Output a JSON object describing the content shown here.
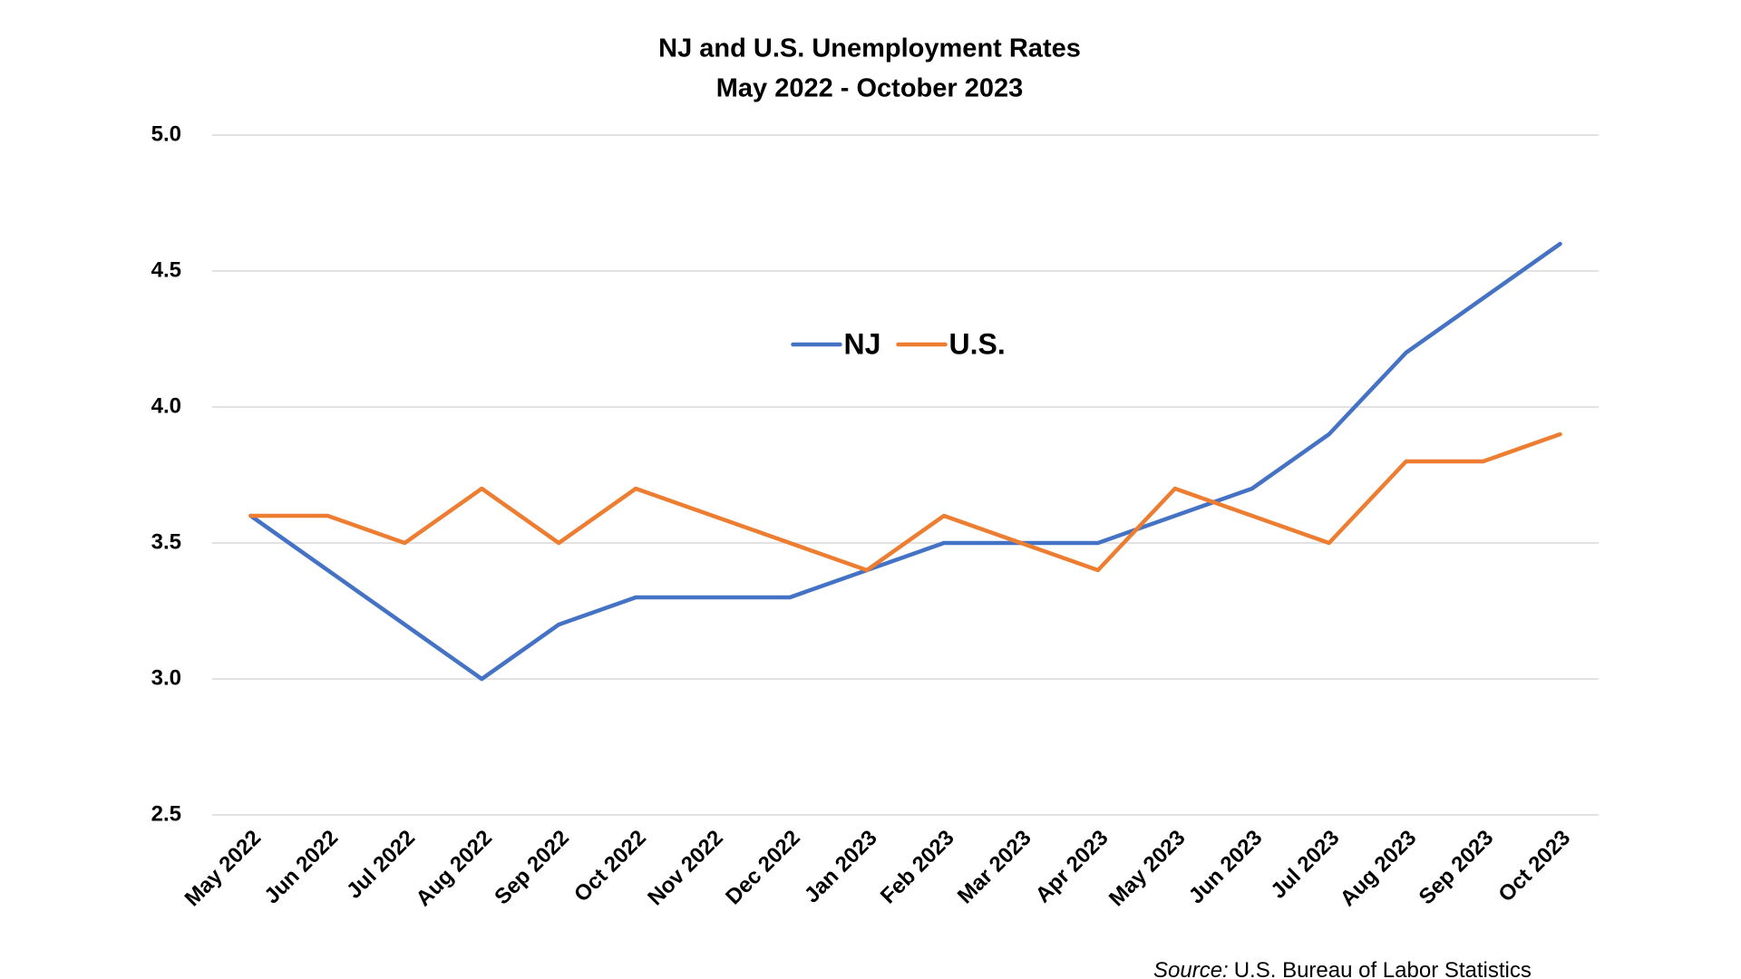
{
  "chart_data": {
    "type": "line",
    "title": "NJ and U.S. Unemployment Rates",
    "subtitle": "May 2022 - October 2023",
    "categories": [
      "May 2022",
      "Jun 2022",
      "Jul 2022",
      "Aug 2022",
      "Sep 2022",
      "Oct 2022",
      "Nov 2022",
      "Dec 2022",
      "Jan 2023",
      "Feb 2023",
      "Mar 2023",
      "Apr 2023",
      "May 2023",
      "Jun 2023",
      "Jul 2023",
      "Aug 2023",
      "Sep 2023",
      "Oct 2023"
    ],
    "series": [
      {
        "name": "NJ",
        "color": "#4472c4",
        "values": [
          3.6,
          3.4,
          3.2,
          3.0,
          3.2,
          3.3,
          3.3,
          3.3,
          3.4,
          3.5,
          3.5,
          3.5,
          3.6,
          3.7,
          3.9,
          4.2,
          4.4,
          4.6
        ]
      },
      {
        "name": "U.S.",
        "color": "#ed7d31",
        "values": [
          3.6,
          3.6,
          3.5,
          3.7,
          3.5,
          3.7,
          3.6,
          3.5,
          3.4,
          3.6,
          3.5,
          3.4,
          3.7,
          3.6,
          3.5,
          3.8,
          3.8,
          3.9
        ]
      }
    ],
    "ylim": [
      2.5,
      5.0
    ],
    "yticks": [
      2.5,
      {
        "value": 3.0,
        "label": "3.0"
      },
      3.5,
      {
        "value": 4.0,
        "label": "4.0"
      },
      4.5,
      {
        "value": 5.0,
        "label": "5.0"
      }
    ],
    "grid": true,
    "legend": "top",
    "source_label": "Source:",
    "source_text": "U.S. Bureau of Labor Statistics"
  }
}
